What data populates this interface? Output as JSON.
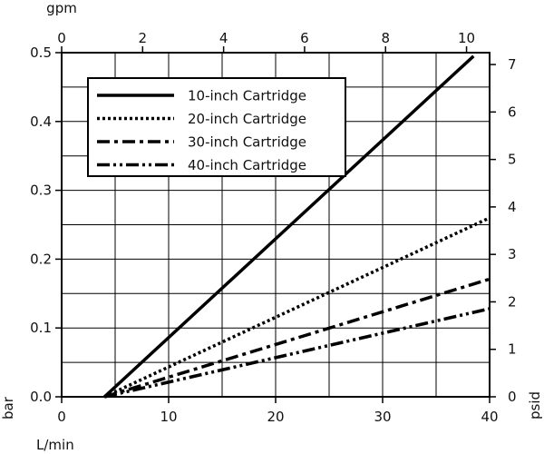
{
  "chart_data": {
    "type": "line",
    "title": "",
    "xlabel_bottom": "L/min",
    "xlabel_top": "gpm",
    "ylabel_left": "bar",
    "ylabel_right": "psid",
    "xlim": [
      0,
      40
    ],
    "ylim": [
      0,
      0.5
    ],
    "x_ticks": [
      0,
      10,
      20,
      30,
      40
    ],
    "y_ticks": [
      0.0,
      0.1,
      0.2,
      0.3,
      0.4,
      0.5
    ],
    "y_tick_labels": [
      "0.0",
      "0.1",
      "0.2",
      "0.3",
      "0.4",
      "0.5"
    ],
    "top_axis_ticks": [
      0,
      2,
      4,
      6,
      8,
      10
    ],
    "top_axis_lim": [
      0,
      10.57
    ],
    "right_axis_ticks": [
      0,
      1,
      2,
      3,
      4,
      5,
      6,
      7
    ],
    "right_axis_lim": [
      0,
      7.25
    ],
    "grid": true,
    "legend_position": "top-left",
    "series": [
      {
        "name": "10-inch Cartridge",
        "style": "solid",
        "x": [
          4.0,
          38.5
        ],
        "y": [
          0.0,
          0.495
        ]
      },
      {
        "name": "20-inch Cartridge",
        "style": "dotted",
        "x": [
          4.0,
          40.0
        ],
        "y": [
          0.0,
          0.26
        ]
      },
      {
        "name": "30-inch Cartridge",
        "style": "dashdot",
        "x": [
          4.0,
          40.0
        ],
        "y": [
          0.0,
          0.171
        ]
      },
      {
        "name": "40-inch Cartridge",
        "style": "dashdotdot",
        "x": [
          4.0,
          40.0
        ],
        "y": [
          0.0,
          0.128
        ]
      }
    ]
  }
}
